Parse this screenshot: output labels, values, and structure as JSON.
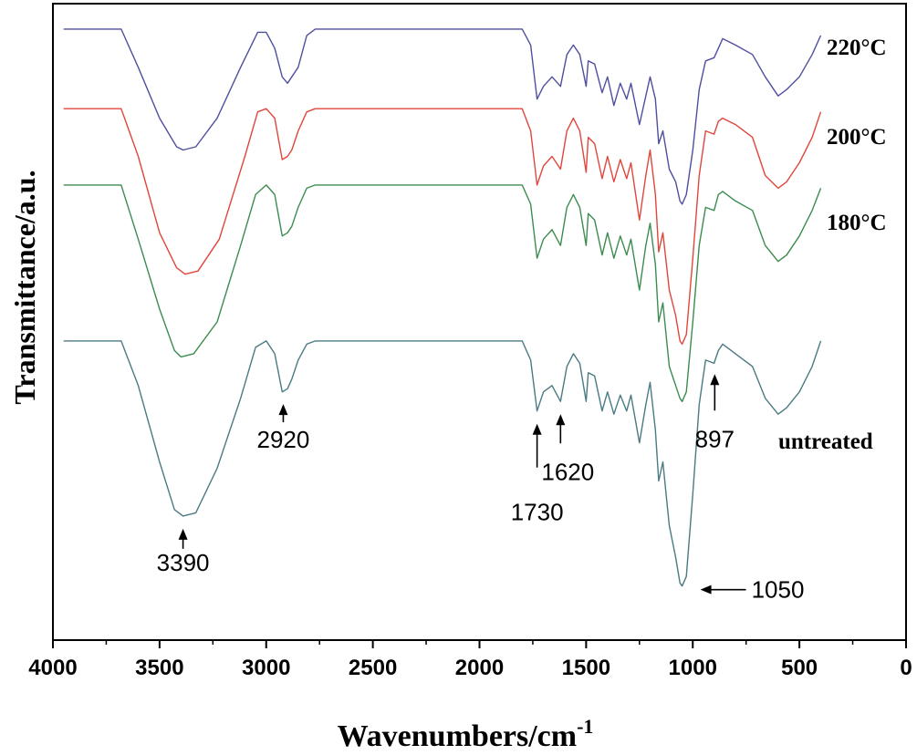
{
  "chart_data": {
    "type": "line",
    "title": "",
    "xlabel": "Wavenumbers/cm",
    "xlabel_sup": "-1",
    "ylabel": "Transmittance/a.u.",
    "xlim": [
      4000,
      0
    ],
    "x_reversed": true,
    "x_ticks": [
      4000,
      3500,
      3000,
      2500,
      2000,
      1500,
      1000,
      500,
      0
    ],
    "y_ticks_shown": false,
    "grid": false,
    "legend": "labels at right end of each trace",
    "series": [
      {
        "name": "220°C",
        "color": "#4f4fa0",
        "baseline": 0.96,
        "points": [
          [
            3950,
            0.96
          ],
          [
            3680,
            0.96
          ],
          [
            3600,
            0.9
          ],
          [
            3500,
            0.82
          ],
          [
            3420,
            0.775
          ],
          [
            3390,
            0.77
          ],
          [
            3330,
            0.775
          ],
          [
            3230,
            0.82
          ],
          [
            3120,
            0.9
          ],
          [
            3040,
            0.955
          ],
          [
            3000,
            0.955
          ],
          [
            2960,
            0.93
          ],
          [
            2925,
            0.885
          ],
          [
            2900,
            0.875
          ],
          [
            2870,
            0.89
          ],
          [
            2850,
            0.9
          ],
          [
            2810,
            0.95
          ],
          [
            2770,
            0.96
          ],
          [
            1800,
            0.96
          ],
          [
            1760,
            0.935
          ],
          [
            1730,
            0.85
          ],
          [
            1700,
            0.87
          ],
          [
            1660,
            0.885
          ],
          [
            1620,
            0.87
          ],
          [
            1590,
            0.92
          ],
          [
            1560,
            0.935
          ],
          [
            1530,
            0.92
          ],
          [
            1500,
            0.87
          ],
          [
            1490,
            0.91
          ],
          [
            1460,
            0.905
          ],
          [
            1425,
            0.86
          ],
          [
            1400,
            0.885
          ],
          [
            1370,
            0.84
          ],
          [
            1340,
            0.875
          ],
          [
            1310,
            0.85
          ],
          [
            1290,
            0.875
          ],
          [
            1250,
            0.81
          ],
          [
            1220,
            0.855
          ],
          [
            1200,
            0.885
          ],
          [
            1175,
            0.85
          ],
          [
            1160,
            0.78
          ],
          [
            1140,
            0.8
          ],
          [
            1110,
            0.74
          ],
          [
            1080,
            0.72
          ],
          [
            1060,
            0.69
          ],
          [
            1050,
            0.685
          ],
          [
            1030,
            0.7
          ],
          [
            1000,
            0.77
          ],
          [
            970,
            0.865
          ],
          [
            940,
            0.91
          ],
          [
            900,
            0.915
          ],
          [
            880,
            0.93
          ],
          [
            860,
            0.945
          ],
          [
            800,
            0.935
          ],
          [
            720,
            0.92
          ],
          [
            660,
            0.885
          ],
          [
            600,
            0.855
          ],
          [
            560,
            0.865
          ],
          [
            500,
            0.885
          ],
          [
            440,
            0.92
          ],
          [
            400,
            0.95
          ]
        ]
      },
      {
        "name": "200°C",
        "color": "#e0463c",
        "baseline": 0.835,
        "points": [
          [
            3950,
            0.835
          ],
          [
            3680,
            0.835
          ],
          [
            3600,
            0.76
          ],
          [
            3500,
            0.64
          ],
          [
            3420,
            0.585
          ],
          [
            3380,
            0.575
          ],
          [
            3320,
            0.58
          ],
          [
            3220,
            0.63
          ],
          [
            3100,
            0.76
          ],
          [
            3040,
            0.83
          ],
          [
            3000,
            0.835
          ],
          [
            2960,
            0.82
          ],
          [
            2925,
            0.755
          ],
          [
            2900,
            0.76
          ],
          [
            2880,
            0.77
          ],
          [
            2850,
            0.8
          ],
          [
            2810,
            0.83
          ],
          [
            2770,
            0.835
          ],
          [
            1800,
            0.835
          ],
          [
            1760,
            0.8
          ],
          [
            1730,
            0.715
          ],
          [
            1700,
            0.745
          ],
          [
            1660,
            0.76
          ],
          [
            1620,
            0.74
          ],
          [
            1590,
            0.8
          ],
          [
            1560,
            0.82
          ],
          [
            1530,
            0.8
          ],
          [
            1500,
            0.735
          ],
          [
            1490,
            0.79
          ],
          [
            1460,
            0.78
          ],
          [
            1425,
            0.725
          ],
          [
            1400,
            0.76
          ],
          [
            1370,
            0.72
          ],
          [
            1340,
            0.755
          ],
          [
            1310,
            0.725
          ],
          [
            1290,
            0.75
          ],
          [
            1250,
            0.66
          ],
          [
            1220,
            0.73
          ],
          [
            1200,
            0.77
          ],
          [
            1175,
            0.7
          ],
          [
            1160,
            0.61
          ],
          [
            1140,
            0.64
          ],
          [
            1110,
            0.55
          ],
          [
            1080,
            0.51
          ],
          [
            1060,
            0.47
          ],
          [
            1050,
            0.465
          ],
          [
            1030,
            0.48
          ],
          [
            1000,
            0.6
          ],
          [
            970,
            0.73
          ],
          [
            940,
            0.8
          ],
          [
            900,
            0.795
          ],
          [
            880,
            0.815
          ],
          [
            860,
            0.82
          ],
          [
            800,
            0.81
          ],
          [
            720,
            0.79
          ],
          [
            660,
            0.73
          ],
          [
            600,
            0.71
          ],
          [
            560,
            0.72
          ],
          [
            500,
            0.75
          ],
          [
            440,
            0.79
          ],
          [
            400,
            0.83
          ]
        ]
      },
      {
        "name": "180°C",
        "color": "#3c8c50",
        "baseline": 0.715,
        "points": [
          [
            3950,
            0.715
          ],
          [
            3680,
            0.715
          ],
          [
            3600,
            0.63
          ],
          [
            3500,
            0.52
          ],
          [
            3430,
            0.455
          ],
          [
            3400,
            0.445
          ],
          [
            3340,
            0.45
          ],
          [
            3230,
            0.5
          ],
          [
            3120,
            0.62
          ],
          [
            3050,
            0.7
          ],
          [
            3000,
            0.715
          ],
          [
            2960,
            0.7
          ],
          [
            2925,
            0.635
          ],
          [
            2900,
            0.64
          ],
          [
            2880,
            0.65
          ],
          [
            2850,
            0.68
          ],
          [
            2810,
            0.71
          ],
          [
            2770,
            0.715
          ],
          [
            1800,
            0.715
          ],
          [
            1760,
            0.685
          ],
          [
            1730,
            0.6
          ],
          [
            1700,
            0.63
          ],
          [
            1660,
            0.645
          ],
          [
            1620,
            0.62
          ],
          [
            1590,
            0.68
          ],
          [
            1560,
            0.7
          ],
          [
            1530,
            0.68
          ],
          [
            1500,
            0.62
          ],
          [
            1490,
            0.67
          ],
          [
            1460,
            0.66
          ],
          [
            1425,
            0.605
          ],
          [
            1400,
            0.64
          ],
          [
            1370,
            0.6
          ],
          [
            1340,
            0.635
          ],
          [
            1310,
            0.605
          ],
          [
            1290,
            0.63
          ],
          [
            1250,
            0.55
          ],
          [
            1220,
            0.62
          ],
          [
            1200,
            0.655
          ],
          [
            1175,
            0.59
          ],
          [
            1160,
            0.5
          ],
          [
            1140,
            0.53
          ],
          [
            1110,
            0.43
          ],
          [
            1080,
            0.4
          ],
          [
            1060,
            0.38
          ],
          [
            1050,
            0.375
          ],
          [
            1030,
            0.39
          ],
          [
            1000,
            0.5
          ],
          [
            970,
            0.62
          ],
          [
            940,
            0.68
          ],
          [
            900,
            0.675
          ],
          [
            880,
            0.7
          ],
          [
            860,
            0.705
          ],
          [
            800,
            0.69
          ],
          [
            720,
            0.675
          ],
          [
            660,
            0.62
          ],
          [
            600,
            0.595
          ],
          [
            560,
            0.605
          ],
          [
            500,
            0.635
          ],
          [
            440,
            0.675
          ],
          [
            400,
            0.71
          ]
        ]
      },
      {
        "name": "untreated",
        "color": "#4a7a82",
        "baseline": 0.47,
        "points": [
          [
            3950,
            0.47
          ],
          [
            3680,
            0.47
          ],
          [
            3600,
            0.4
          ],
          [
            3500,
            0.28
          ],
          [
            3430,
            0.205
          ],
          [
            3390,
            0.195
          ],
          [
            3330,
            0.2
          ],
          [
            3230,
            0.27
          ],
          [
            3120,
            0.38
          ],
          [
            3050,
            0.46
          ],
          [
            3000,
            0.47
          ],
          [
            2960,
            0.45
          ],
          [
            2925,
            0.39
          ],
          [
            2900,
            0.395
          ],
          [
            2880,
            0.41
          ],
          [
            2850,
            0.44
          ],
          [
            2810,
            0.465
          ],
          [
            2770,
            0.47
          ],
          [
            1800,
            0.47
          ],
          [
            1760,
            0.44
          ],
          [
            1730,
            0.36
          ],
          [
            1700,
            0.39
          ],
          [
            1660,
            0.4
          ],
          [
            1620,
            0.375
          ],
          [
            1590,
            0.43
          ],
          [
            1560,
            0.45
          ],
          [
            1530,
            0.435
          ],
          [
            1500,
            0.375
          ],
          [
            1490,
            0.42
          ],
          [
            1460,
            0.415
          ],
          [
            1425,
            0.36
          ],
          [
            1400,
            0.39
          ],
          [
            1370,
            0.355
          ],
          [
            1340,
            0.385
          ],
          [
            1310,
            0.36
          ],
          [
            1290,
            0.385
          ],
          [
            1250,
            0.31
          ],
          [
            1220,
            0.37
          ],
          [
            1200,
            0.405
          ],
          [
            1175,
            0.33
          ],
          [
            1160,
            0.25
          ],
          [
            1140,
            0.28
          ],
          [
            1110,
            0.18
          ],
          [
            1080,
            0.13
          ],
          [
            1060,
            0.09
          ],
          [
            1050,
            0.085
          ],
          [
            1030,
            0.1
          ],
          [
            1000,
            0.23
          ],
          [
            970,
            0.37
          ],
          [
            940,
            0.44
          ],
          [
            900,
            0.435
          ],
          [
            880,
            0.455
          ],
          [
            860,
            0.465
          ],
          [
            800,
            0.45
          ],
          [
            720,
            0.43
          ],
          [
            660,
            0.38
          ],
          [
            600,
            0.355
          ],
          [
            560,
            0.365
          ],
          [
            500,
            0.39
          ],
          [
            440,
            0.43
          ],
          [
            400,
            0.47
          ]
        ]
      }
    ],
    "annotations": [
      {
        "text": "3390",
        "x": 3390,
        "arrow": "up"
      },
      {
        "text": "2920",
        "x": 2920,
        "arrow": "up"
      },
      {
        "text": "1730",
        "x": 1730,
        "arrow": "up"
      },
      {
        "text": "1620",
        "x": 1620,
        "arrow": "up"
      },
      {
        "text": "897",
        "x": 897,
        "arrow": "up"
      },
      {
        "text": "1050",
        "x": 1050,
        "arrow": "left"
      }
    ]
  }
}
